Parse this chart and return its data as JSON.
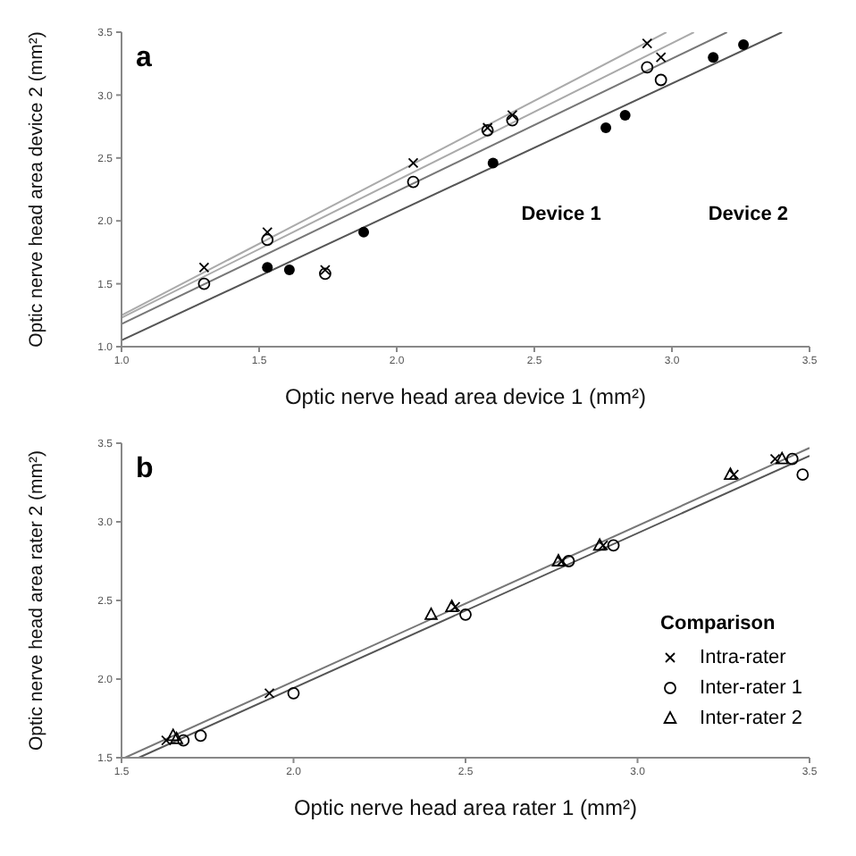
{
  "chart_data": [
    {
      "type": "scatter",
      "title": "a",
      "xlabel": "Optic nerve head area device 1 (mm²)",
      "ylabel": "Optic nerve head area device 2 (mm²)",
      "xlim": [
        1,
        3.5
      ],
      "xticks": [
        {
          "value": 1,
          "label": "1.0"
        },
        {
          "value": 1.5,
          "label": "1.5"
        },
        {
          "value": 2,
          "label": "2.0"
        },
        {
          "value": 2.5,
          "label": "2.5"
        },
        {
          "value": 3,
          "label": "3.0"
        },
        {
          "value": 3.5,
          "label": "3.5"
        }
      ],
      "ylim": [
        1,
        3.5
      ],
      "yticks": [
        {
          "value": 1,
          "label": "1.0"
        },
        {
          "value": 1.5,
          "label": "1.5"
        },
        {
          "value": 2,
          "label": "2.0"
        },
        {
          "value": 2.5,
          "label": "2.5"
        },
        {
          "value": 3,
          "label": "3.0"
        },
        {
          "value": 3.5,
          "label": "3.5"
        }
      ],
      "legend": false,
      "annotations": [
        "Device 1",
        "Device 2"
      ],
      "series": [
        {
          "marker": "filled-circle",
          "color": "#000000",
          "x": [
            1.53,
            1.61,
            1.88,
            2.35,
            2.76,
            2.83,
            3.15,
            3.26
          ],
          "values": [
            1.63,
            1.61,
            1.91,
            2.46,
            2.74,
            2.84,
            3.3,
            3.4
          ]
        },
        {
          "marker": "circle",
          "color": "#000000",
          "x": [
            1.3,
            1.53,
            1.74,
            2.06,
            2.33,
            2.42,
            2.91,
            2.96
          ],
          "values": [
            1.5,
            1.85,
            1.58,
            2.31,
            2.72,
            2.8,
            3.22,
            3.12
          ]
        },
        {
          "marker": "cross",
          "color": "#000000",
          "x": [
            1.3,
            1.53,
            1.74,
            2.06,
            2.33,
            2.42,
            2.91,
            2.96
          ],
          "values": [
            1.63,
            1.91,
            1.61,
            2.46,
            2.74,
            2.84,
            3.41,
            3.3
          ]
        },
        {
          "type": "line",
          "line_style": "solid",
          "color": "#555555",
          "x": [
            1.0,
            3.4
          ],
          "values": [
            1.05,
            3.5
          ]
        },
        {
          "type": "line",
          "line_style": "solid",
          "color": "#777777",
          "x": [
            1.0,
            3.2
          ],
          "values": [
            1.18,
            3.5
          ]
        },
        {
          "type": "line",
          "line_style": "solid",
          "color": "#aaaaaa",
          "x": [
            1.0,
            3.08
          ],
          "values": [
            1.23,
            3.5
          ]
        },
        {
          "type": "line",
          "line_style": "solid",
          "color": "#aaaaaa",
          "x": [
            1.0,
            2.98
          ],
          "values": [
            1.25,
            3.5
          ]
        }
      ]
    },
    {
      "type": "scatter",
      "title": "b",
      "xlabel": "Optic nerve head area rater 1 (mm²)",
      "ylabel": "Optic nerve head area rater 2 (mm²)",
      "xlim": [
        1.5,
        3.5
      ],
      "xticks": [
        {
          "value": 1.5,
          "label": "1.5"
        },
        {
          "value": 2,
          "label": "2.0"
        },
        {
          "value": 2.5,
          "label": "2.5"
        },
        {
          "value": 3,
          "label": "3.0"
        },
        {
          "value": 3.5,
          "label": "3.5"
        }
      ],
      "ylim": [
        1.5,
        3.5
      ],
      "yticks": [
        {
          "value": 1.5,
          "label": "1.5"
        },
        {
          "value": 2,
          "label": "2.0"
        },
        {
          "value": 2.5,
          "label": "2.5"
        },
        {
          "value": 3,
          "label": "3.0"
        },
        {
          "value": 3.5,
          "label": "3.5"
        }
      ],
      "legend": "bottom right",
      "legend_title": "Comparison",
      "series": [
        {
          "name": "Intra-rater",
          "marker": "cross",
          "color": "#000000",
          "x": [
            1.63,
            1.93,
            2.47,
            2.78,
            2.9,
            3.28,
            3.4
          ],
          "values": [
            1.61,
            1.91,
            2.46,
            2.75,
            2.85,
            3.3,
            3.4
          ]
        },
        {
          "name": "Inter-rater 1",
          "marker": "circle",
          "color": "#000000",
          "x": [
            1.68,
            1.73,
            2.0,
            2.5,
            2.8,
            2.93,
            3.45,
            3.48
          ],
          "values": [
            1.61,
            1.64,
            1.91,
            2.41,
            2.75,
            2.85,
            3.4,
            3.3
          ]
        },
        {
          "name": "Inter-rater 2",
          "marker": "triangle",
          "color": "#000000",
          "x": [
            1.65,
            1.66,
            2.4,
            2.46,
            2.77,
            2.89,
            3.27,
            3.42
          ],
          "values": [
            1.64,
            1.62,
            2.41,
            2.46,
            2.75,
            2.85,
            3.3,
            3.4
          ]
        },
        {
          "type": "line",
          "line_style": "solid",
          "color": "#777777",
          "x": [
            1.51,
            3.5
          ],
          "values": [
            1.5,
            3.47
          ]
        },
        {
          "type": "line",
          "line_style": "solid",
          "color": "#555555",
          "x": [
            1.55,
            3.5
          ],
          "values": [
            1.5,
            3.42
          ]
        }
      ]
    }
  ]
}
